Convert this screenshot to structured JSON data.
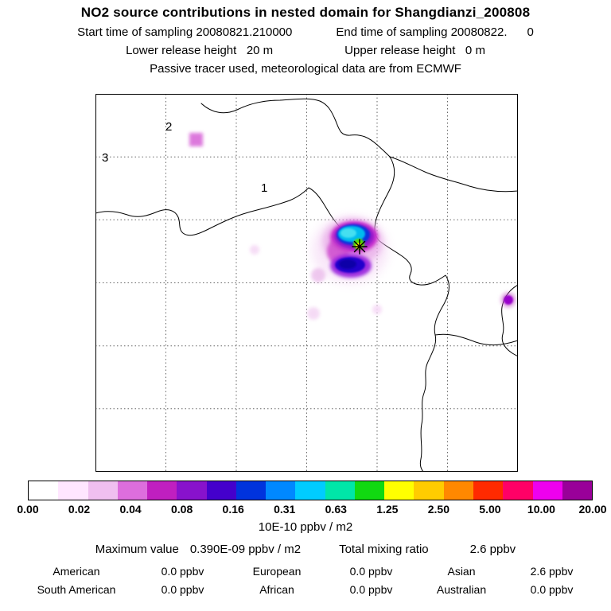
{
  "header": {
    "title": "NO2 source contributions in nested domain for Shangdianzi_200808",
    "start_time": "Start time of sampling 20080821.210000",
    "end_time": "End time of sampling 20080822.      0",
    "lower_release": "Lower release height   20 m",
    "upper_release": "Upper release height   0 m",
    "tracer_info": "Passive tracer used, meteorological data are from ECMWF"
  },
  "map": {
    "region_labels": [
      "1",
      "2",
      "3"
    ],
    "station_marker": "asterisk at Shangdianzi"
  },
  "chart_data": {
    "type": "heatmap",
    "title": "NO2 source contributions in nested domain for Shangdianzi_200808",
    "description": "Geographic map with dashed lat/lon grid, coastlines and colored source-contribution plume centered on the Shangdianzi station marker",
    "station": "Shangdianzi",
    "sampling": {
      "start": "20080821.210000",
      "end": "20080822.0"
    },
    "release_heights": {
      "lower_m": 20,
      "upper_m": 0
    },
    "met_data": "ECMWF",
    "colorbar": {
      "units": "10E-10 ppbv / m2",
      "tick_labels": [
        "0.00",
        "0.02",
        "0.04",
        "0.08",
        "0.16",
        "0.31",
        "0.63",
        "1.25",
        "2.50",
        "5.00",
        "10.00",
        "20.00"
      ],
      "colors": [
        "#ffffff",
        "#ffe6ff",
        "#f0bff0",
        "#dd6edd",
        "#c01fc0",
        "#8812cc",
        "#4400cc",
        "#0033dd",
        "#0088ff",
        "#00ccff",
        "#00e6a8",
        "#11d911",
        "#ffff00",
        "#ffcc00",
        "#ff8800",
        "#ff2a00",
        "#ff0066",
        "#ee00ee",
        "#990099"
      ]
    },
    "stats": {
      "maximum_value_label": "Maximum value",
      "maximum_value": "0.390E-09 ppbv / m2",
      "total_mixing_ratio_label": "Total mixing ratio",
      "total_mixing_ratio": "2.6 ppbv"
    },
    "regions": [
      {
        "name": "American",
        "value": "0.0 ppbv"
      },
      {
        "name": "European",
        "value": "0.0 ppbv"
      },
      {
        "name": "Asian",
        "value": "2.6 ppbv"
      },
      {
        "name": "South American",
        "value": "0.0 ppbv"
      },
      {
        "name": "African",
        "value": "0.0 ppbv"
      },
      {
        "name": "Australian",
        "value": "0.0 ppbv"
      }
    ]
  }
}
